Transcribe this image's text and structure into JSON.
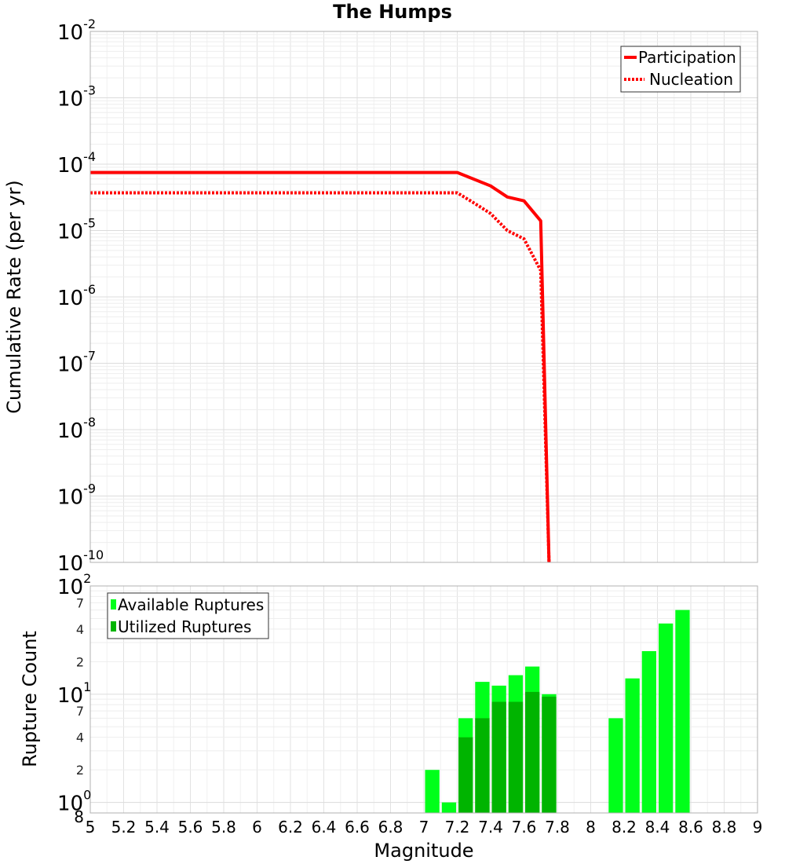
{
  "chart_data": [
    {
      "type": "line",
      "title": "The Humps",
      "xlabel": "Magnitude",
      "ylabel": "Cumulative Rate (per yr)",
      "xlim": [
        5,
        9
      ],
      "ylim": [
        1e-10,
        0.01
      ],
      "yscale": "log",
      "grid": true,
      "legend_position": "top-right",
      "y_tick_base": "10",
      "y_tick_exponents": [
        "-2",
        "-3",
        "-4",
        "-5",
        "-6",
        "-7",
        "-8",
        "-9",
        "-10"
      ],
      "series": [
        {
          "name": "Participation",
          "color": "#ff0000",
          "style": "solid",
          "x": [
            5,
            7.2,
            7.4,
            7.5,
            7.6,
            7.7,
            7.75
          ],
          "y": [
            7.5e-05,
            7.5e-05,
            4.7e-05,
            3.2e-05,
            2.8e-05,
            1.4e-05,
            1e-10
          ]
        },
        {
          "name": "Nucleation",
          "color": "#ff0000",
          "style": "dotted",
          "x": [
            5,
            7.2,
            7.3,
            7.4,
            7.5,
            7.6,
            7.7,
            7.75
          ],
          "y": [
            3.7e-05,
            3.7e-05,
            2.6e-05,
            1.8e-05,
            1e-05,
            7.5e-06,
            2.5e-06,
            1e-10
          ]
        }
      ]
    },
    {
      "type": "bar",
      "xlabel": "Magnitude",
      "ylabel": "Rupture Count",
      "xlim": [
        5,
        9
      ],
      "ylim": [
        0.8,
        100
      ],
      "yscale": "log",
      "grid": true,
      "legend_position": "top-left",
      "bar_width": 0.1,
      "x_ticks": [
        "5",
        "5.2",
        "5.4",
        "5.6",
        "5.8",
        "6",
        "6.2",
        "6.4",
        "6.6",
        "6.8",
        "7",
        "7.2",
        "7.4",
        "7.6",
        "7.8",
        "8",
        "8.2",
        "8.4",
        "8.6",
        "8.8",
        "9"
      ],
      "y_major_base": "10",
      "y_major_ticks": [
        {
          "value": 1,
          "exp": "0"
        },
        {
          "value": 10,
          "exp": "1"
        },
        {
          "value": 100,
          "exp": "2"
        }
      ],
      "y_minor_ticks": [
        {
          "value": 0.8,
          "label": "8"
        },
        {
          "value": 2,
          "label": "2"
        },
        {
          "value": 4,
          "label": "4"
        },
        {
          "value": 7,
          "label": "7"
        },
        {
          "value": 20,
          "label": "2"
        },
        {
          "value": 40,
          "label": "4"
        },
        {
          "value": 70,
          "label": "7"
        }
      ],
      "series": [
        {
          "name": "Available Ruptures",
          "color": "#00ff1a",
          "bars": [
            {
              "x": 7.05,
              "value": 2
            },
            {
              "x": 7.15,
              "value": 1
            },
            {
              "x": 7.25,
              "value": 6
            },
            {
              "x": 7.35,
              "value": 13
            },
            {
              "x": 7.45,
              "value": 12
            },
            {
              "x": 7.55,
              "value": 15
            },
            {
              "x": 7.65,
              "value": 18
            },
            {
              "x": 7.75,
              "value": 10
            },
            {
              "x": 8.15,
              "value": 6
            },
            {
              "x": 8.25,
              "value": 14
            },
            {
              "x": 8.35,
              "value": 25
            },
            {
              "x": 8.45,
              "value": 45
            },
            {
              "x": 8.55,
              "value": 60
            }
          ]
        },
        {
          "name": "Utilized Ruptures",
          "color": "#00b400",
          "bars": [
            {
              "x": 7.25,
              "value": 4
            },
            {
              "x": 7.35,
              "value": 6
            },
            {
              "x": 7.45,
              "value": 8.5
            },
            {
              "x": 7.55,
              "value": 8.5
            },
            {
              "x": 7.65,
              "value": 10.5
            },
            {
              "x": 7.75,
              "value": 9.5
            }
          ]
        }
      ]
    }
  ]
}
